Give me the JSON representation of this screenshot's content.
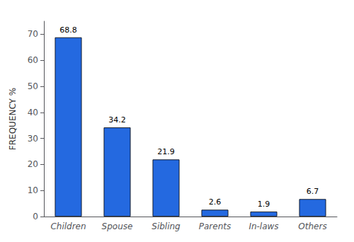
{
  "chart_data": {
    "type": "bar",
    "categories": [
      "Children",
      "Spouse",
      "Sibling",
      "Parents",
      "In-laws",
      "Others"
    ],
    "values": [
      68.8,
      34.2,
      21.9,
      2.6,
      1.9,
      6.7
    ],
    "color": "#2469e0",
    "ylabel": "FREQUENCY %",
    "ylim": [
      0,
      75
    ],
    "yticks": [
      0,
      10,
      20,
      30,
      40,
      50,
      60,
      70
    ],
    "grid": false,
    "data_labels": true
  }
}
